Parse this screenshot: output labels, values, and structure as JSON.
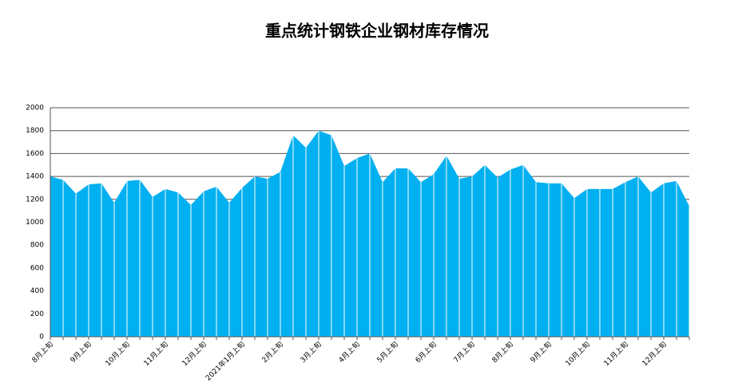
{
  "chart_data": {
    "type": "area",
    "title": "重点统计钢铁企业钢材库存情况",
    "categories": [
      "8月上旬",
      null,
      null,
      "9月上旬",
      null,
      null,
      "10月上旬",
      null,
      null,
      "11月上旬",
      null,
      null,
      "12月上旬",
      null,
      null,
      "2021年1月上旬",
      null,
      null,
      "2月上旬",
      null,
      null,
      "3月上旬",
      null,
      null,
      "4月上旬",
      null,
      null,
      "5月上旬",
      null,
      null,
      "6月上旬",
      null,
      null,
      "7月上旬",
      null,
      null,
      "8月上旬",
      null,
      null,
      "9月上旬",
      null,
      null,
      "10月上旬",
      null,
      null,
      "11月上旬",
      null,
      null,
      "12月上旬",
      null,
      null
    ],
    "values": [
      1400,
      1370,
      1250,
      1330,
      1340,
      1170,
      1360,
      1370,
      1220,
      1290,
      1260,
      1150,
      1270,
      1310,
      1170,
      1300,
      1400,
      1380,
      1440,
      1760,
      1650,
      1800,
      1760,
      1490,
      1560,
      1600,
      1350,
      1470,
      1470,
      1350,
      1420,
      1580,
      1380,
      1400,
      1500,
      1390,
      1460,
      1500,
      1350,
      1340,
      1340,
      1210,
      1290,
      1290,
      1290,
      1350,
      1400,
      1260,
      1340,
      1360,
      1140
    ],
    "color": "#00b0f0",
    "ylim": [
      0,
      2000
    ],
    "yticks": [
      0,
      200,
      400,
      600,
      800,
      1000,
      1200,
      1400,
      1600,
      1800,
      2000
    ],
    "grid": true
  }
}
